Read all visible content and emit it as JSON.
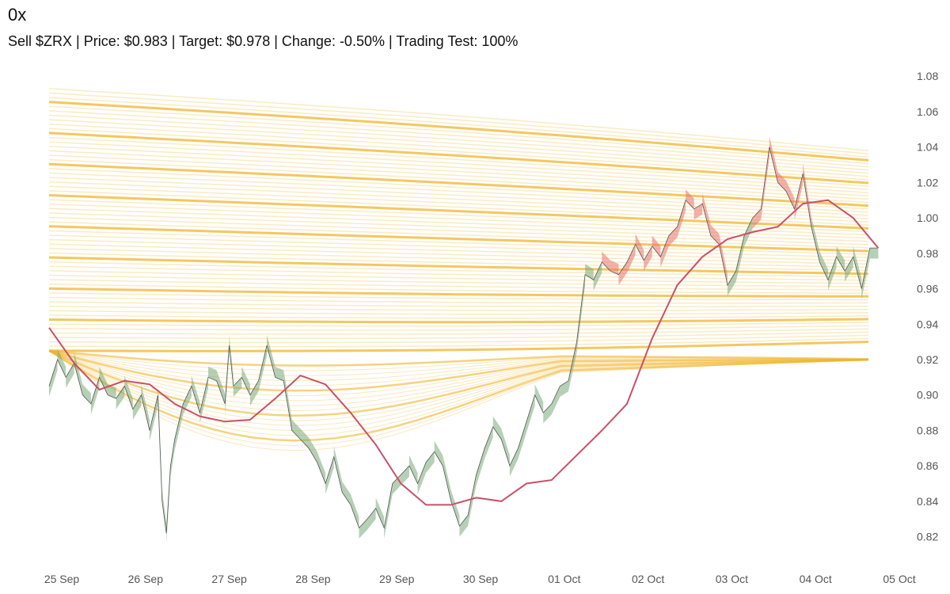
{
  "header": {
    "title": "0x",
    "subtitle": "Sell $ZRX | Price: $0.983 | Target: $0.978 | Change: -0.50% | Trading Test: 100%"
  },
  "colors": {
    "band": "#f0b429",
    "band_light": "#f5d27a",
    "price_line": "#555555",
    "ma_line": "#c8506a",
    "fill_up": "#7aa97a",
    "fill_down": "#e8736a"
  },
  "chart_data": {
    "type": "line",
    "x_ticks": [
      "25 Sep",
      "26 Sep",
      "27 Sep",
      "28 Sep",
      "29 Sep",
      "30 Sep",
      "01 Oct",
      "02 Oct",
      "03 Oct",
      "04 Oct",
      "05 Oct"
    ],
    "y_ticks": [
      "0.82",
      "0.84",
      "0.86",
      "0.88",
      "0.90",
      "0.92",
      "0.94",
      "0.96",
      "0.98",
      "1.00",
      "1.02",
      "1.04",
      "1.06",
      "1.08"
    ],
    "ylim": [
      0.81,
      1.085
    ],
    "x_range_days": [
      0,
      10
    ],
    "series": [
      {
        "role": "price",
        "x": [
          0.0,
          0.1,
          0.2,
          0.3,
          0.4,
          0.5,
          0.6,
          0.7,
          0.8,
          0.9,
          1.0,
          1.1,
          1.2,
          1.3,
          1.35,
          1.4,
          1.45,
          1.5,
          1.6,
          1.7,
          1.8,
          1.9,
          2.0,
          2.1,
          2.15,
          2.2,
          2.3,
          2.4,
          2.5,
          2.6,
          2.7,
          2.8,
          2.9,
          3.0,
          3.1,
          3.2,
          3.3,
          3.4,
          3.5,
          3.6,
          3.7,
          3.8,
          3.9,
          4.0,
          4.1,
          4.2,
          4.3,
          4.4,
          4.5,
          4.6,
          4.7,
          4.8,
          4.9,
          5.0,
          5.1,
          5.2,
          5.3,
          5.4,
          5.5,
          5.6,
          5.7,
          5.8,
          5.9,
          6.0,
          6.1,
          6.2,
          6.3,
          6.4,
          6.5,
          6.6,
          6.7,
          6.8,
          6.9,
          7.0,
          7.1,
          7.2,
          7.3,
          7.4,
          7.5,
          7.6,
          7.7,
          7.8,
          7.9,
          8.0,
          8.1,
          8.2,
          8.3,
          8.4,
          8.5,
          8.6,
          8.7,
          8.8,
          8.9,
          9.0,
          9.1,
          9.2,
          9.3,
          9.4,
          9.5,
          9.6,
          9.7,
          9.8,
          9.9
        ],
        "values": [
          0.905,
          0.92,
          0.91,
          0.918,
          0.9,
          0.895,
          0.91,
          0.9,
          0.898,
          0.905,
          0.892,
          0.9,
          0.88,
          0.9,
          0.84,
          0.822,
          0.86,
          0.875,
          0.895,
          0.905,
          0.89,
          0.91,
          0.908,
          0.895,
          0.928,
          0.905,
          0.91,
          0.9,
          0.908,
          0.928,
          0.91,
          0.908,
          0.88,
          0.875,
          0.87,
          0.862,
          0.85,
          0.865,
          0.845,
          0.838,
          0.825,
          0.83,
          0.836,
          0.825,
          0.85,
          0.855,
          0.86,
          0.85,
          0.862,
          0.868,
          0.86,
          0.84,
          0.826,
          0.832,
          0.855,
          0.87,
          0.882,
          0.875,
          0.86,
          0.87,
          0.885,
          0.9,
          0.89,
          0.895,
          0.905,
          0.908,
          0.93,
          0.968,
          0.965,
          0.975,
          0.97,
          0.968,
          0.975,
          0.985,
          0.976,
          0.984,
          0.978,
          0.99,
          0.995,
          1.01,
          1.005,
          1.008,
          0.99,
          0.985,
          0.962,
          0.97,
          0.99,
          1.0,
          1.005,
          1.04,
          1.02,
          1.015,
          1.005,
          1.025,
          0.995,
          0.975,
          0.965,
          0.978,
          0.97,
          0.978,
          0.96,
          0.983,
          0.983
        ]
      },
      {
        "role": "moving-average",
        "x": [
          0.0,
          0.3,
          0.6,
          0.9,
          1.2,
          1.5,
          1.8,
          2.1,
          2.4,
          2.7,
          3.0,
          3.3,
          3.6,
          3.9,
          4.2,
          4.5,
          4.8,
          5.1,
          5.4,
          5.7,
          6.0,
          6.3,
          6.6,
          6.9,
          7.2,
          7.5,
          7.8,
          8.1,
          8.4,
          8.7,
          9.0,
          9.3,
          9.6,
          9.9
        ],
        "values": [
          0.938,
          0.918,
          0.903,
          0.908,
          0.906,
          0.895,
          0.888,
          0.885,
          0.886,
          0.898,
          0.911,
          0.906,
          0.89,
          0.872,
          0.85,
          0.838,
          0.838,
          0.842,
          0.84,
          0.85,
          0.852,
          0.866,
          0.88,
          0.895,
          0.932,
          0.962,
          0.978,
          0.988,
          0.992,
          0.995,
          1.008,
          1.01,
          1.0,
          0.983
        ]
      }
    ]
  }
}
